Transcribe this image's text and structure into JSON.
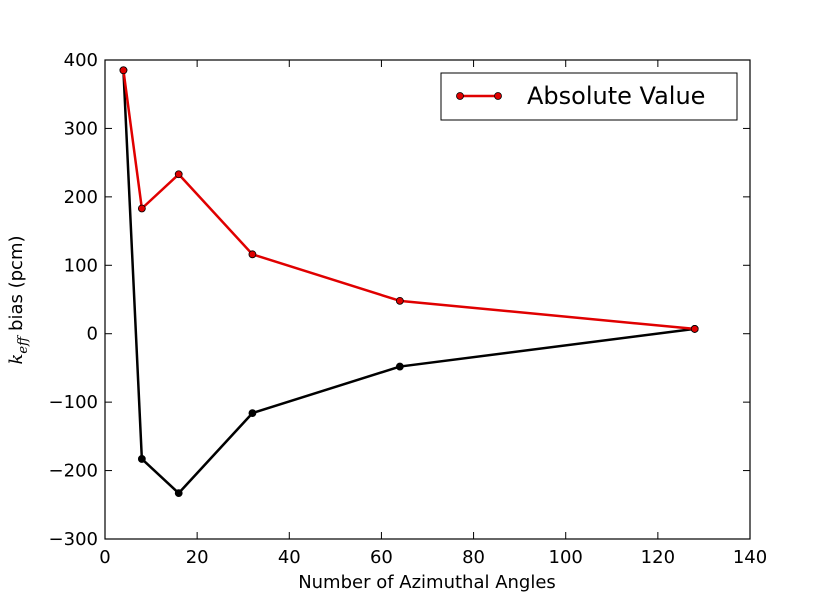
{
  "chart_data": {
    "type": "line",
    "title": "",
    "xlabel": "Number of Azimuthal Angles",
    "ylabel": {
      "symbol": "k",
      "subscript": "eff",
      "text": " bias (pcm)"
    },
    "xlim": [
      0,
      140
    ],
    "ylim": [
      -300,
      400
    ],
    "xticks": [
      0,
      20,
      40,
      60,
      80,
      100,
      120,
      140
    ],
    "yticks": [
      -300,
      -200,
      -100,
      0,
      100,
      200,
      300,
      400
    ],
    "xtick_labels": [
      "0",
      "20",
      "40",
      "60",
      "80",
      "100",
      "120",
      "140"
    ],
    "ytick_labels": [
      "−300",
      "−200",
      "−100",
      "0",
      "100",
      "200",
      "300",
      "400"
    ],
    "grid": false,
    "legend_position": "top-right",
    "series": [
      {
        "name": "",
        "color": "#000000",
        "marker": "circle",
        "x": [
          4,
          8,
          16,
          32,
          64,
          128
        ],
        "y": [
          385,
          -183,
          -233,
          -116,
          -48,
          7
        ]
      },
      {
        "name": "Absolute Value",
        "color": "#e00000",
        "marker": "circle",
        "x": [
          4,
          8,
          16,
          32,
          64,
          128
        ],
        "y": [
          385,
          183,
          233,
          116,
          48,
          7
        ]
      }
    ]
  }
}
